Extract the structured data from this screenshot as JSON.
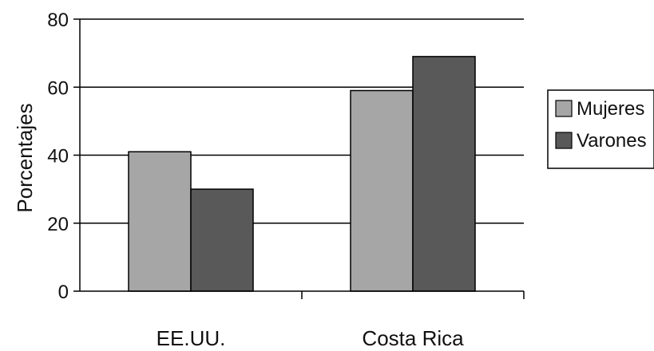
{
  "chart_data": {
    "type": "bar",
    "categories": [
      "EE.UU.",
      "Costa Rica"
    ],
    "series": [
      {
        "name": "Mujeres",
        "values": [
          41,
          59
        ],
        "color": "#a6a6a6"
      },
      {
        "name": "Varones",
        "values": [
          30,
          69
        ],
        "color": "#595959"
      }
    ],
    "ylabel": "Porcentajes",
    "ylim": [
      0,
      80
    ],
    "yticks": [
      0,
      20,
      40,
      60,
      80
    ],
    "grid": true,
    "legend": "right"
  }
}
